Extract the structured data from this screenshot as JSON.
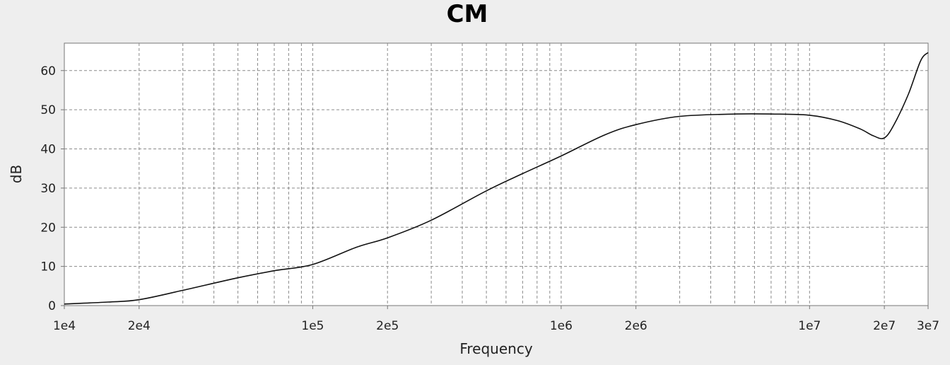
{
  "chart_data": {
    "type": "line",
    "title": "CM",
    "xlabel": "Frequency",
    "ylabel": "dB",
    "x_scale": "log",
    "xlim": [
      10000,
      30000000
    ],
    "ylim": [
      0,
      67
    ],
    "grid": true,
    "x_ticks": [
      {
        "value": 10000,
        "label": "1e4"
      },
      {
        "value": 20000,
        "label": "2e4"
      },
      {
        "value": 100000,
        "label": "1e5"
      },
      {
        "value": 200000,
        "label": "2e5"
      },
      {
        "value": 1000000,
        "label": "1e6"
      },
      {
        "value": 2000000,
        "label": "2e6"
      },
      {
        "value": 10000000,
        "label": "1e7"
      },
      {
        "value": 20000000,
        "label": "2e7"
      },
      {
        "value": 30000000,
        "label": "3e7"
      }
    ],
    "x_minor_grid": [
      30000,
      40000,
      50000,
      60000,
      70000,
      80000,
      90000,
      300000,
      400000,
      500000,
      600000,
      700000,
      800000,
      900000,
      3000000,
      4000000,
      5000000,
      6000000,
      7000000,
      8000000,
      9000000
    ],
    "y_ticks": [
      0,
      10,
      20,
      30,
      40,
      50,
      60
    ],
    "series": [
      {
        "x": [
          10000,
          15000,
          20000,
          30000,
          50000,
          70000,
          100000,
          150000,
          200000,
          300000,
          500000,
          700000,
          1000000,
          1500000,
          2000000,
          3000000,
          5000000,
          7000000,
          10000000,
          13000000,
          16000000,
          18000000,
          20000000,
          22000000,
          25000000,
          28000000,
          30000000
        ],
        "y": [
          0.4,
          0.9,
          1.5,
          3.9,
          7.1,
          8.9,
          10.5,
          14.9,
          17.3,
          21.8,
          29.3,
          33.7,
          38.2,
          43.6,
          46.2,
          48.3,
          48.9,
          48.9,
          48.6,
          47.2,
          45.1,
          43.4,
          42.8,
          46.5,
          54.0,
          62.5,
          64.6
        ]
      }
    ],
    "colors": {
      "line": "#111111",
      "plot_bg": "#ffffff",
      "page_bg": "#eeeeee",
      "grid": "#8a8a8a"
    }
  }
}
